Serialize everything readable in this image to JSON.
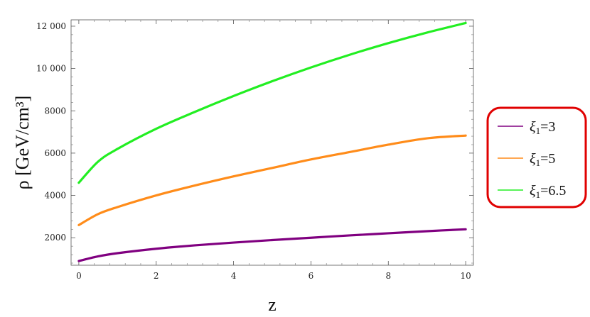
{
  "chart_data": {
    "type": "line",
    "xlabel": "z",
    "ylabel": "ρ [GeV/cm³]",
    "xlim": [
      -0.2,
      10.2
    ],
    "ylim": [
      700,
      12300
    ],
    "xticks": [
      0,
      2,
      4,
      6,
      8,
      10
    ],
    "xtick_labels": [
      "0",
      "2",
      "4",
      "6",
      "8",
      "10"
    ],
    "yticks": [
      2000,
      4000,
      6000,
      8000,
      10000,
      12000
    ],
    "ytick_labels": [
      "2000",
      "4000",
      "6000",
      "8000",
      "10 000",
      "12 000"
    ],
    "grid": false,
    "legend_position": "right",
    "legend_border_color": "#e00000",
    "series": [
      {
        "name": "ξ1=3",
        "label_symbol": "ξ",
        "label_sub": "1",
        "label_rest": "=3",
        "color": "#800080",
        "x": [
          0,
          0.5,
          1,
          2,
          3,
          4,
          5,
          6,
          7,
          8,
          9,
          10
        ],
        "values": [
          900,
          1120,
          1270,
          1480,
          1640,
          1770,
          1890,
          2000,
          2110,
          2210,
          2310,
          2400
        ]
      },
      {
        "name": "ξ1=5",
        "label_symbol": "ξ",
        "label_sub": "1",
        "label_rest": "=5",
        "color": "#ff8c1a",
        "x": [
          0,
          0.5,
          1,
          2,
          3,
          4,
          5,
          6,
          7,
          8,
          9,
          10
        ],
        "values": [
          2600,
          3120,
          3450,
          4000,
          4470,
          4900,
          5300,
          5700,
          6050,
          6400,
          6700,
          6830
        ]
      },
      {
        "name": "ξ1=6.5",
        "label_symbol": "ξ",
        "label_sub": "1",
        "label_rest": "=6.5",
        "color": "#22ee22",
        "x": [
          0,
          0.5,
          1,
          2,
          3,
          4,
          5,
          6,
          7,
          8,
          9,
          10
        ],
        "values": [
          4600,
          5600,
          6200,
          7150,
          7950,
          8700,
          9400,
          10050,
          10650,
          11200,
          11700,
          12150
        ]
      }
    ]
  }
}
